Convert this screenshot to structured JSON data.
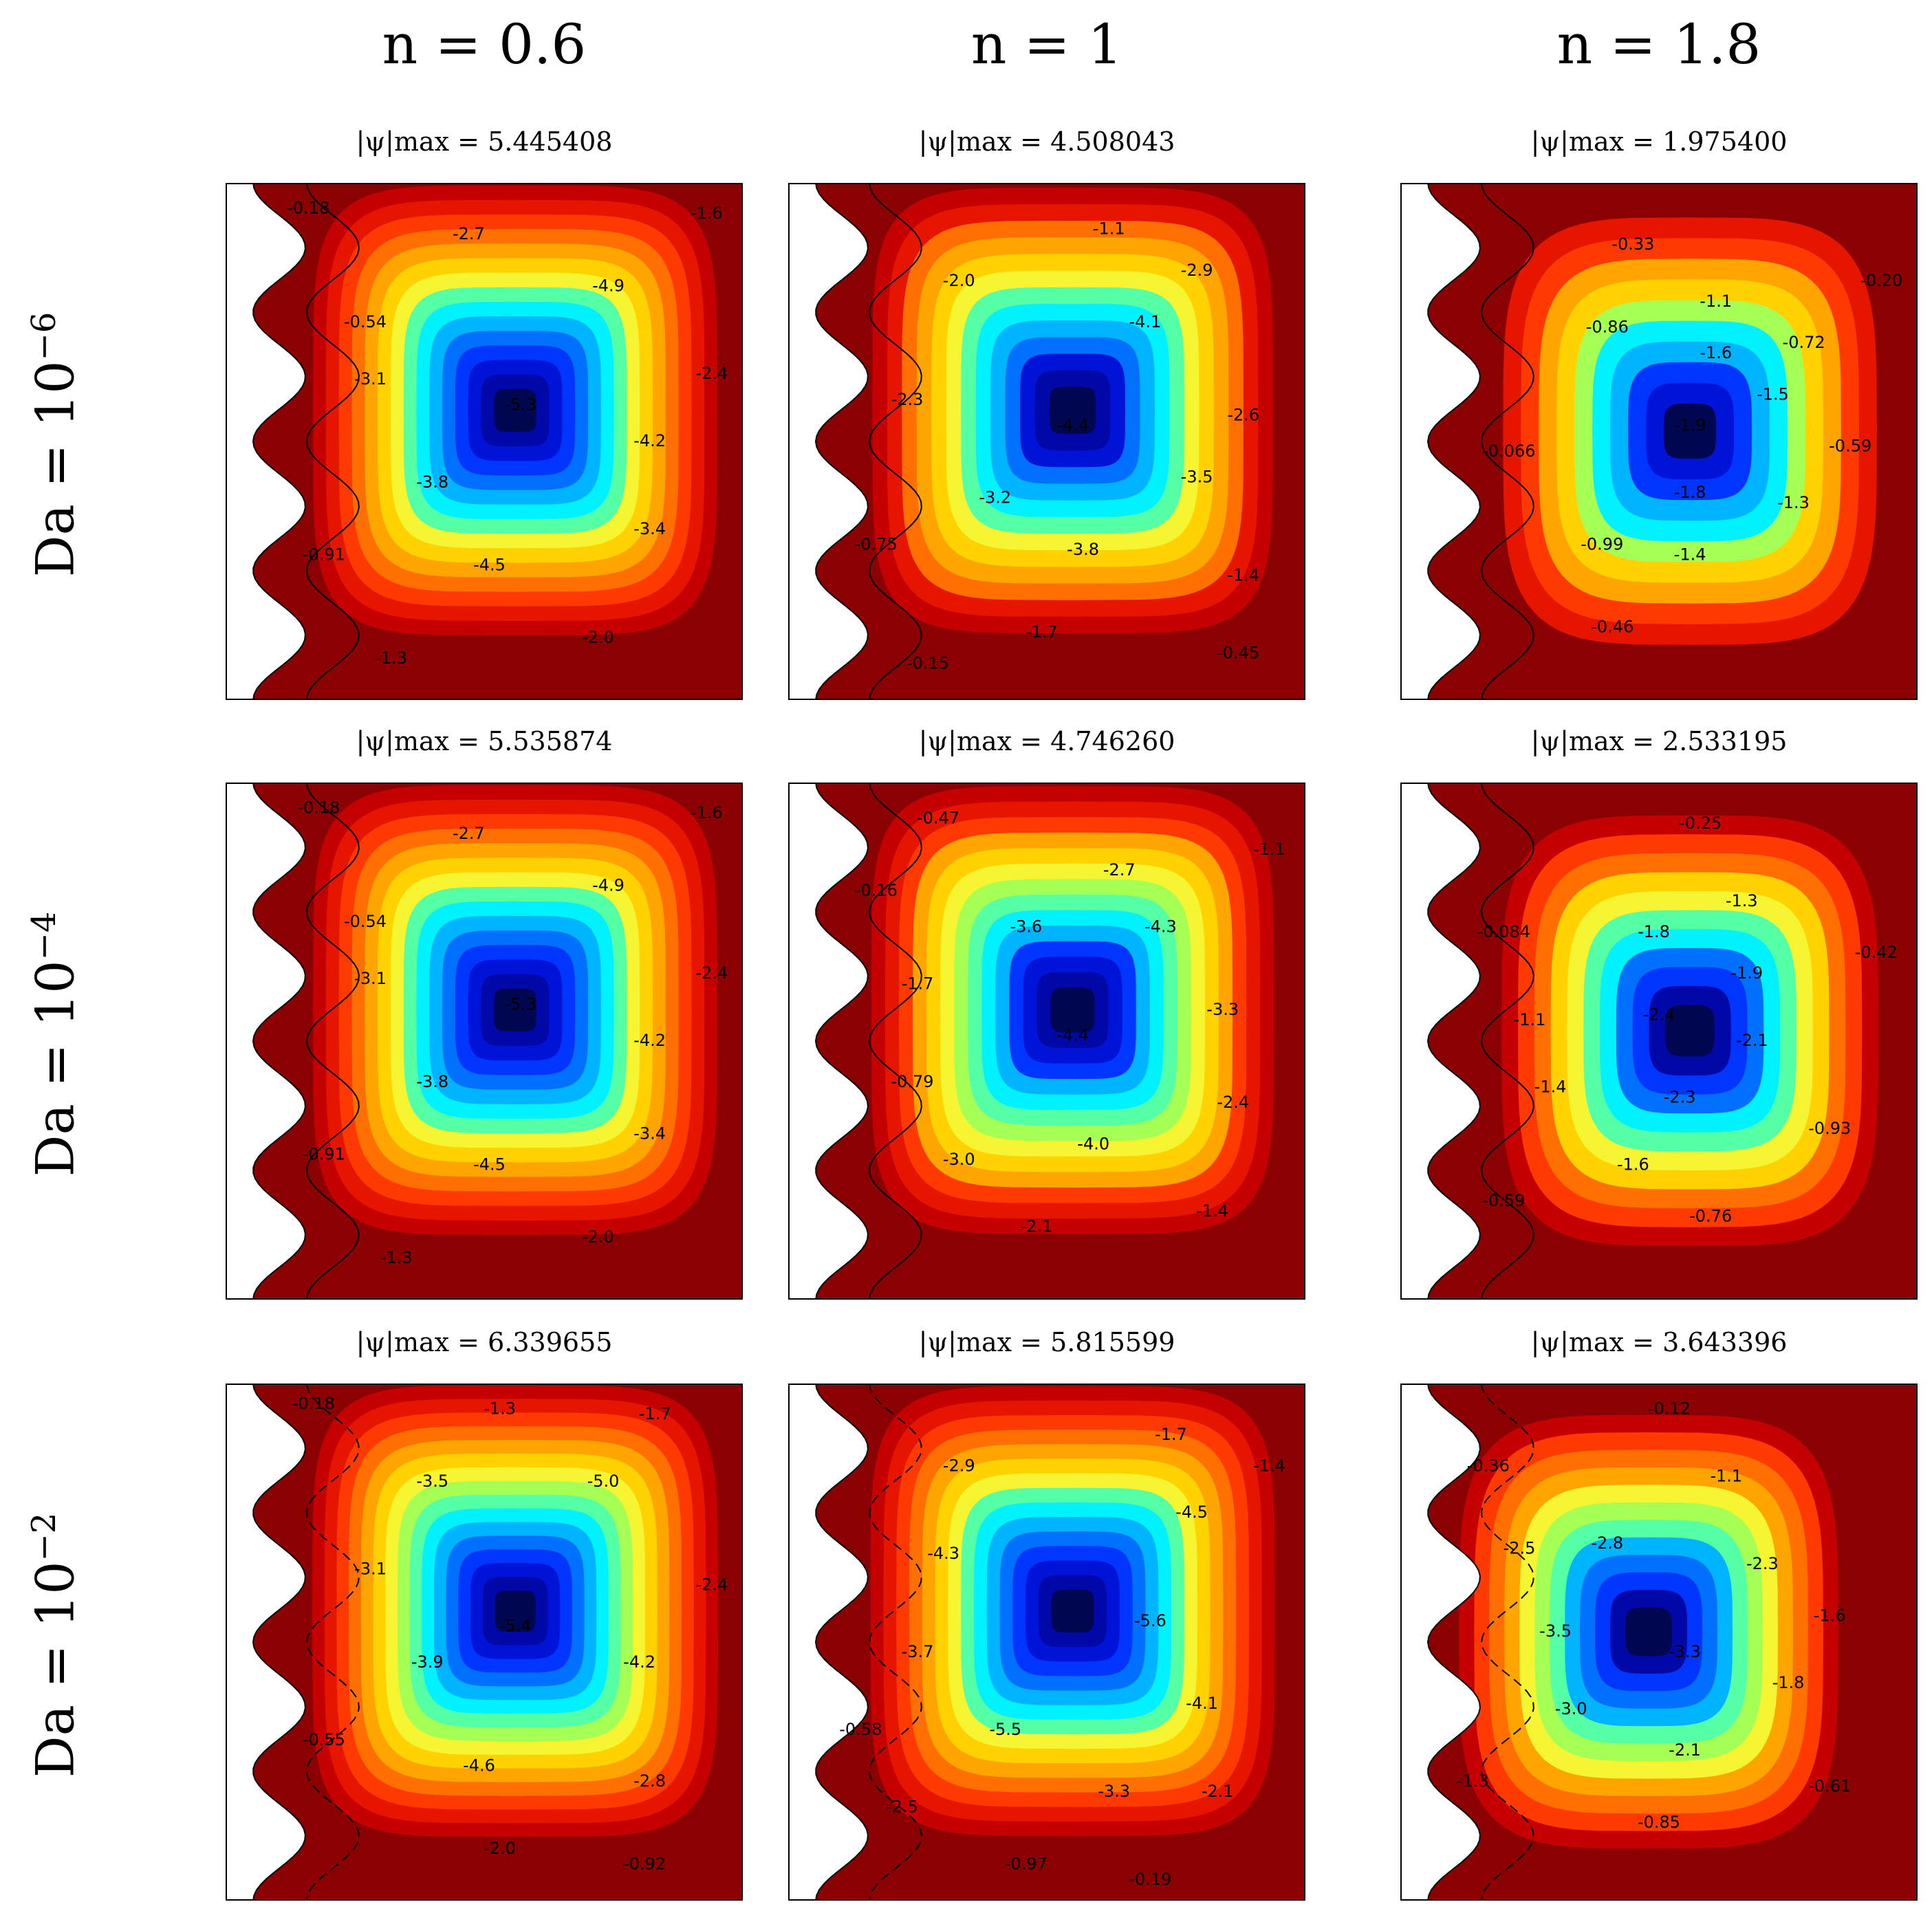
{
  "chart_data": {
    "type": "heatmap",
    "colormap": "jet",
    "columns": [
      {
        "label": "n = 0.6",
        "n": 0.6
      },
      {
        "label": "n = 1",
        "n": 1
      },
      {
        "label": "n = 1.8",
        "n": 1.8
      }
    ],
    "rows": [
      {
        "label": "Da = 10",
        "exponent": "−6",
        "Da": 1e-06
      },
      {
        "label": "Da = 10",
        "exponent": "−4",
        "Da": 0.0001
      },
      {
        "label": "Da = 10",
        "exponent": "−2",
        "Da": 0.01
      }
    ],
    "panels": [
      {
        "row": 0,
        "col": 0,
        "title": "|ψ|max = 5.445408",
        "psi_max": 5.445408,
        "contour_labels": [
          {
            "text": "-0.18",
            "x": 0.16,
            "y": 0.05
          },
          {
            "text": "-2.7",
            "x": 0.47,
            "y": 0.1
          },
          {
            "text": "-1.6",
            "x": 0.93,
            "y": 0.06
          },
          {
            "text": "-4.9",
            "x": 0.74,
            "y": 0.2
          },
          {
            "text": "-0.54",
            "x": 0.27,
            "y": 0.27
          },
          {
            "text": "-3.1",
            "x": 0.28,
            "y": 0.38
          },
          {
            "text": "-2.4",
            "x": 0.94,
            "y": 0.37
          },
          {
            "text": "-5.3",
            "x": 0.57,
            "y": 0.43
          },
          {
            "text": "-4.2",
            "x": 0.82,
            "y": 0.5
          },
          {
            "text": "-3.8",
            "x": 0.4,
            "y": 0.58
          },
          {
            "text": "-3.4",
            "x": 0.82,
            "y": 0.67
          },
          {
            "text": "-0.91",
            "x": 0.19,
            "y": 0.72
          },
          {
            "text": "-4.5",
            "x": 0.51,
            "y": 0.74
          },
          {
            "text": "-2.0",
            "x": 0.72,
            "y": 0.88
          },
          {
            "text": "-1.3",
            "x": 0.32,
            "y": 0.92
          }
        ]
      },
      {
        "row": 0,
        "col": 1,
        "title": "|ψ|max = 4.508043",
        "psi_max": 4.508043,
        "contour_labels": [
          {
            "text": "-1.1",
            "x": 0.62,
            "y": 0.09
          },
          {
            "text": "-2.0",
            "x": 0.33,
            "y": 0.19
          },
          {
            "text": "-2.9",
            "x": 0.79,
            "y": 0.17
          },
          {
            "text": "-4.1",
            "x": 0.69,
            "y": 0.27
          },
          {
            "text": "-2.3",
            "x": 0.23,
            "y": 0.42
          },
          {
            "text": "-2.6",
            "x": 0.88,
            "y": 0.45
          },
          {
            "text": "-4.4",
            "x": 0.55,
            "y": 0.47
          },
          {
            "text": "-3.5",
            "x": 0.79,
            "y": 0.57
          },
          {
            "text": "-3.2",
            "x": 0.4,
            "y": 0.61
          },
          {
            "text": "-0.75",
            "x": 0.17,
            "y": 0.7
          },
          {
            "text": "-3.8",
            "x": 0.57,
            "y": 0.71
          },
          {
            "text": "-1.4",
            "x": 0.88,
            "y": 0.76
          },
          {
            "text": "-1.7",
            "x": 0.49,
            "y": 0.87
          },
          {
            "text": "-0.15",
            "x": 0.27,
            "y": 0.93
          },
          {
            "text": "-0.45",
            "x": 0.87,
            "y": 0.91
          }
        ]
      },
      {
        "row": 0,
        "col": 2,
        "title": "|ψ|max = 1.975400",
        "psi_max": 1.9754,
        "contour_labels": [
          {
            "text": "-0.33",
            "x": 0.45,
            "y": 0.12
          },
          {
            "text": "-0.20",
            "x": 0.93,
            "y": 0.19
          },
          {
            "text": "-1.1",
            "x": 0.61,
            "y": 0.23
          },
          {
            "text": "-0.86",
            "x": 0.4,
            "y": 0.28
          },
          {
            "text": "-0.72",
            "x": 0.78,
            "y": 0.31
          },
          {
            "text": "-1.6",
            "x": 0.61,
            "y": 0.33
          },
          {
            "text": "-1.5",
            "x": 0.72,
            "y": 0.41
          },
          {
            "text": "-1.9",
            "x": 0.56,
            "y": 0.47
          },
          {
            "text": "-0.066",
            "x": 0.21,
            "y": 0.52
          },
          {
            "text": "-0.59",
            "x": 0.87,
            "y": 0.51
          },
          {
            "text": "-1.8",
            "x": 0.56,
            "y": 0.6
          },
          {
            "text": "-1.3",
            "x": 0.76,
            "y": 0.62
          },
          {
            "text": "-0.99",
            "x": 0.39,
            "y": 0.7
          },
          {
            "text": "-1.4",
            "x": 0.56,
            "y": 0.72
          },
          {
            "text": "-0.46",
            "x": 0.41,
            "y": 0.86
          }
        ]
      },
      {
        "row": 1,
        "col": 0,
        "title": "|ψ|max = 5.535874",
        "psi_max": 5.535874,
        "contour_labels": [
          {
            "text": "-0.18",
            "x": 0.18,
            "y": 0.05
          },
          {
            "text": "-2.7",
            "x": 0.47,
            "y": 0.1
          },
          {
            "text": "-1.6",
            "x": 0.93,
            "y": 0.06
          },
          {
            "text": "-4.9",
            "x": 0.74,
            "y": 0.2
          },
          {
            "text": "-0.54",
            "x": 0.27,
            "y": 0.27
          },
          {
            "text": "-3.1",
            "x": 0.28,
            "y": 0.38
          },
          {
            "text": "-2.4",
            "x": 0.94,
            "y": 0.37
          },
          {
            "text": "-5.3",
            "x": 0.57,
            "y": 0.43
          },
          {
            "text": "-4.2",
            "x": 0.82,
            "y": 0.5
          },
          {
            "text": "-3.8",
            "x": 0.4,
            "y": 0.58
          },
          {
            "text": "-3.4",
            "x": 0.82,
            "y": 0.68
          },
          {
            "text": "-0.91",
            "x": 0.19,
            "y": 0.72
          },
          {
            "text": "-4.5",
            "x": 0.51,
            "y": 0.74
          },
          {
            "text": "-2.0",
            "x": 0.72,
            "y": 0.88
          },
          {
            "text": "-1.3",
            "x": 0.33,
            "y": 0.92
          }
        ]
      },
      {
        "row": 1,
        "col": 1,
        "title": "|ψ|max = 4.746260",
        "psi_max": 4.74626,
        "contour_labels": [
          {
            "text": "-0.47",
            "x": 0.29,
            "y": 0.07
          },
          {
            "text": "-1.1",
            "x": 0.93,
            "y": 0.13
          },
          {
            "text": "-0.16",
            "x": 0.17,
            "y": 0.21
          },
          {
            "text": "-2.7",
            "x": 0.64,
            "y": 0.17
          },
          {
            "text": "-3.6",
            "x": 0.46,
            "y": 0.28
          },
          {
            "text": "-4.3",
            "x": 0.72,
            "y": 0.28
          },
          {
            "text": "-1.7",
            "x": 0.25,
            "y": 0.39
          },
          {
            "text": "-3.3",
            "x": 0.84,
            "y": 0.44
          },
          {
            "text": "-4.4",
            "x": 0.55,
            "y": 0.49
          },
          {
            "text": "-0.79",
            "x": 0.24,
            "y": 0.58
          },
          {
            "text": "-2.4",
            "x": 0.86,
            "y": 0.62
          },
          {
            "text": "-3.0",
            "x": 0.33,
            "y": 0.73
          },
          {
            "text": "-4.0",
            "x": 0.59,
            "y": 0.7
          },
          {
            "text": "-1.4",
            "x": 0.82,
            "y": 0.83
          },
          {
            "text": "-2.1",
            "x": 0.48,
            "y": 0.86
          }
        ]
      },
      {
        "row": 1,
        "col": 2,
        "title": "|ψ|max = 2.533195",
        "psi_max": 2.533195,
        "contour_labels": [
          {
            "text": "-0.25",
            "x": 0.58,
            "y": 0.08
          },
          {
            "text": "-0.084",
            "x": 0.2,
            "y": 0.29
          },
          {
            "text": "-1.3",
            "x": 0.66,
            "y": 0.23
          },
          {
            "text": "-1.8",
            "x": 0.49,
            "y": 0.29
          },
          {
            "text": "-0.42",
            "x": 0.92,
            "y": 0.33
          },
          {
            "text": "-1.9",
            "x": 0.67,
            "y": 0.37
          },
          {
            "text": "-1.1",
            "x": 0.25,
            "y": 0.46
          },
          {
            "text": "-2.4",
            "x": 0.5,
            "y": 0.45
          },
          {
            "text": "-2.1",
            "x": 0.68,
            "y": 0.5
          },
          {
            "text": "-1.4",
            "x": 0.29,
            "y": 0.59
          },
          {
            "text": "-2.3",
            "x": 0.54,
            "y": 0.61
          },
          {
            "text": "-0.93",
            "x": 0.83,
            "y": 0.67
          },
          {
            "text": "-1.6",
            "x": 0.45,
            "y": 0.74
          },
          {
            "text": "-0.59",
            "x": 0.2,
            "y": 0.81
          },
          {
            "text": "-0.76",
            "x": 0.6,
            "y": 0.84
          }
        ]
      },
      {
        "row": 2,
        "col": 0,
        "title": "|ψ|max = 6.339655",
        "psi_max": 6.339655,
        "contour_labels": [
          {
            "text": "-0.18",
            "x": 0.17,
            "y": 0.04
          },
          {
            "text": "-1.3",
            "x": 0.53,
            "y": 0.05
          },
          {
            "text": "-1.7",
            "x": 0.83,
            "y": 0.06
          },
          {
            "text": "-3.5",
            "x": 0.4,
            "y": 0.19
          },
          {
            "text": "-5.0",
            "x": 0.73,
            "y": 0.19
          },
          {
            "text": "-3.1",
            "x": 0.28,
            "y": 0.36
          },
          {
            "text": "-2.4",
            "x": 0.94,
            "y": 0.39
          },
          {
            "text": "-5.4",
            "x": 0.56,
            "y": 0.47
          },
          {
            "text": "-3.9",
            "x": 0.39,
            "y": 0.54
          },
          {
            "text": "-4.2",
            "x": 0.8,
            "y": 0.54
          },
          {
            "text": "-0.55",
            "x": 0.19,
            "y": 0.69
          },
          {
            "text": "-4.6",
            "x": 0.49,
            "y": 0.74
          },
          {
            "text": "-2.8",
            "x": 0.82,
            "y": 0.77
          },
          {
            "text": "-2.0",
            "x": 0.53,
            "y": 0.9
          },
          {
            "text": "-0.92",
            "x": 0.81,
            "y": 0.93
          }
        ]
      },
      {
        "row": 2,
        "col": 1,
        "title": "|ψ|max = 5.815599",
        "psi_max": 5.815599,
        "contour_labels": [
          {
            "text": "-1.7",
            "x": 0.74,
            "y": 0.1
          },
          {
            "text": "-2.9",
            "x": 0.33,
            "y": 0.16
          },
          {
            "text": "-1.4",
            "x": 0.93,
            "y": 0.16
          },
          {
            "text": "-4.5",
            "x": 0.78,
            "y": 0.25
          },
          {
            "text": "-4.3",
            "x": 0.3,
            "y": 0.33
          },
          {
            "text": "-5.6",
            "x": 0.7,
            "y": 0.46
          },
          {
            "text": "-3.7",
            "x": 0.25,
            "y": 0.52
          },
          {
            "text": "-4.1",
            "x": 0.8,
            "y": 0.62
          },
          {
            "text": "-0.58",
            "x": 0.14,
            "y": 0.67
          },
          {
            "text": "-5.5",
            "x": 0.42,
            "y": 0.67
          },
          {
            "text": "-2.5",
            "x": 0.22,
            "y": 0.82
          },
          {
            "text": "-3.3",
            "x": 0.63,
            "y": 0.79
          },
          {
            "text": "-2.1",
            "x": 0.83,
            "y": 0.79
          },
          {
            "text": "-0.97",
            "x": 0.46,
            "y": 0.93
          },
          {
            "text": "-0.19",
            "x": 0.7,
            "y": 0.96
          }
        ]
      },
      {
        "row": 2,
        "col": 2,
        "title": "|ψ|max = 3.643396",
        "psi_max": 3.643396,
        "contour_labels": [
          {
            "text": "-0.12",
            "x": 0.52,
            "y": 0.05
          },
          {
            "text": "-0.36",
            "x": 0.17,
            "y": 0.16
          },
          {
            "text": "-1.1",
            "x": 0.63,
            "y": 0.18
          },
          {
            "text": "-2.5",
            "x": 0.23,
            "y": 0.32
          },
          {
            "text": "-2.8",
            "x": 0.4,
            "y": 0.31
          },
          {
            "text": "-2.3",
            "x": 0.7,
            "y": 0.35
          },
          {
            "text": "-1.6",
            "x": 0.83,
            "y": 0.45
          },
          {
            "text": "-3.5",
            "x": 0.3,
            "y": 0.48
          },
          {
            "text": "-3.3",
            "x": 0.55,
            "y": 0.52
          },
          {
            "text": "-1.8",
            "x": 0.75,
            "y": 0.58
          },
          {
            "text": "-3.0",
            "x": 0.33,
            "y": 0.63
          },
          {
            "text": "-2.1",
            "x": 0.55,
            "y": 0.71
          },
          {
            "text": "-1.3",
            "x": 0.14,
            "y": 0.77
          },
          {
            "text": "-0.61",
            "x": 0.83,
            "y": 0.78
          },
          {
            "text": "-0.85",
            "x": 0.5,
            "y": 0.85
          }
        ]
      }
    ]
  }
}
